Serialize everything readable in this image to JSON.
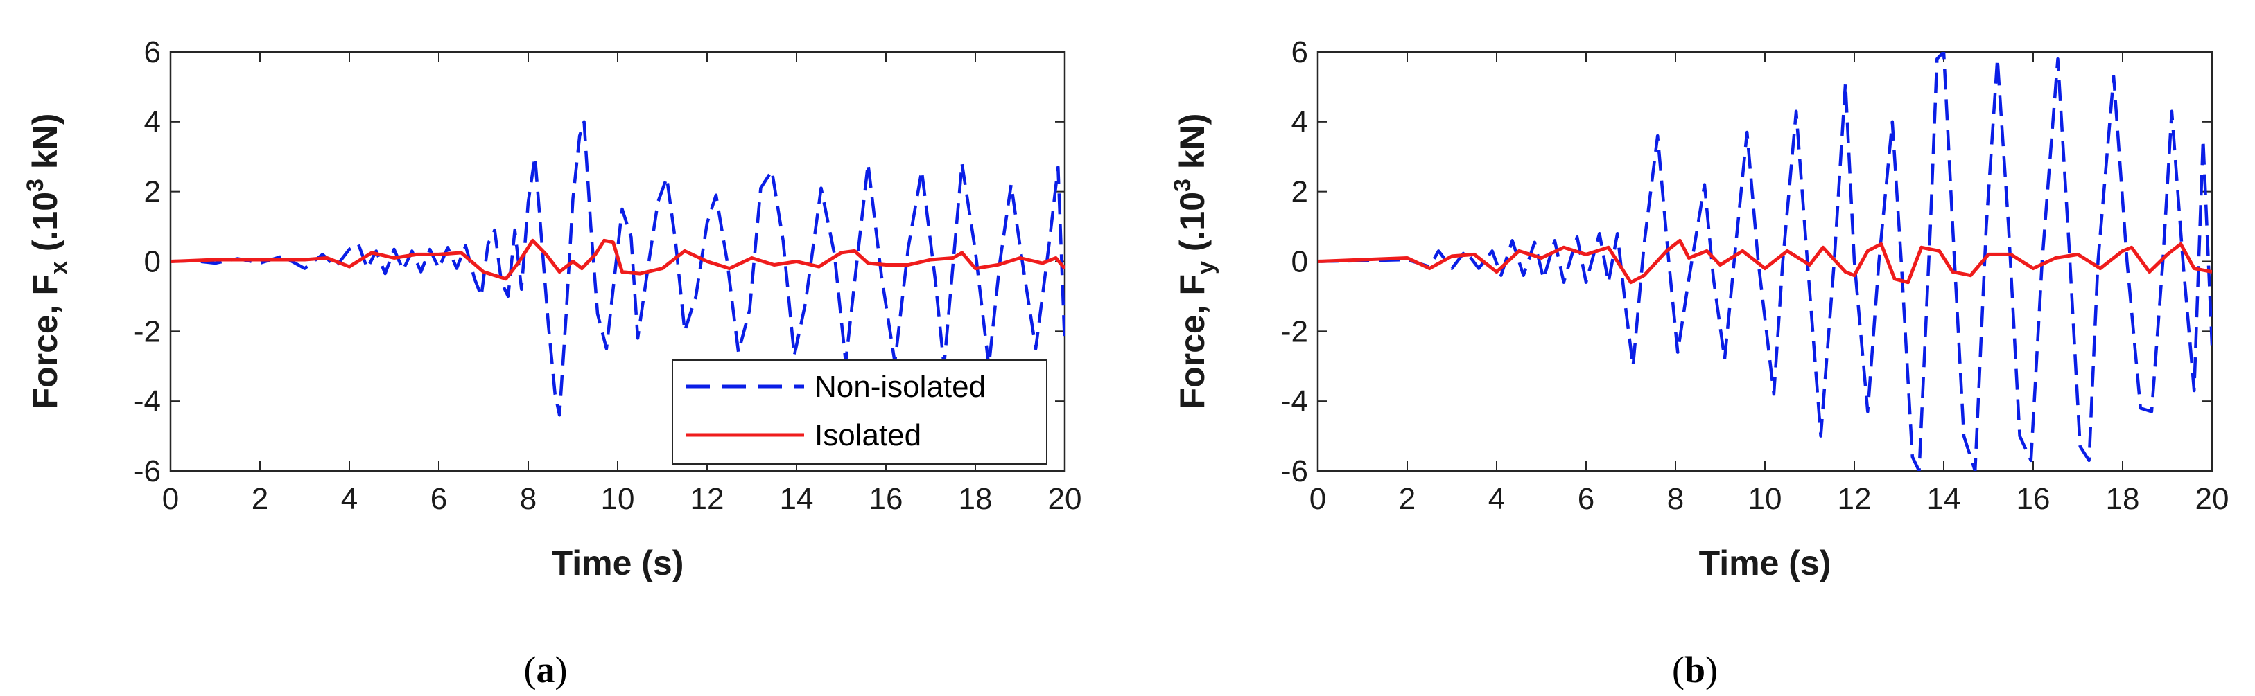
{
  "figure": {
    "colors": {
      "non_isolated": "#0a1ee6",
      "isolated": "#ef1c1c",
      "axis": "#262626",
      "background": "#ffffff"
    }
  },
  "chart_data": [
    {
      "panel": "a",
      "caption_open": "(",
      "caption_letter": "a",
      "caption_close": ")",
      "type": "line",
      "title": "",
      "xlabel": "Time (s)",
      "ylabel_prefix": "Force, F",
      "ylabel_sub": "x",
      "ylabel_unit_open": " (.10",
      "ylabel_sup": "3",
      "ylabel_unit_close": " kN)",
      "xlim": [
        0,
        20
      ],
      "ylim": [
        -6,
        6
      ],
      "x_ticks": [
        0,
        2,
        4,
        6,
        8,
        10,
        12,
        14,
        16,
        18,
        20
      ],
      "y_ticks": [
        -6,
        -4,
        -2,
        0,
        2,
        4,
        6
      ],
      "grid": false,
      "legend": {
        "position": "bottom-right",
        "entries": [
          "Non-isolated",
          "Isolated"
        ]
      },
      "series": [
        {
          "name": "Non-isolated",
          "style": "dashed",
          "color": "#0a1ee6",
          "points": [
            [
              0,
              0
            ],
            [
              0.5,
              0.02
            ],
            [
              1,
              -0.05
            ],
            [
              1.5,
              0.08
            ],
            [
              2,
              -0.05
            ],
            [
              2.5,
              0.15
            ],
            [
              3,
              -0.2
            ],
            [
              3.4,
              0.2
            ],
            [
              3.7,
              -0.15
            ],
            [
              4,
              0.35
            ],
            [
              4.2,
              0.5
            ],
            [
              4.4,
              -0.2
            ],
            [
              4.6,
              0.3
            ],
            [
              4.8,
              -0.35
            ],
            [
              5,
              0.35
            ],
            [
              5.2,
              -0.25
            ],
            [
              5.4,
              0.3
            ],
            [
              5.6,
              -0.3
            ],
            [
              5.8,
              0.35
            ],
            [
              6,
              -0.2
            ],
            [
              6.2,
              0.4
            ],
            [
              6.4,
              -0.2
            ],
            [
              6.6,
              0.45
            ],
            [
              6.8,
              -0.5
            ],
            [
              6.95,
              -1.0
            ],
            [
              7.1,
              0.5
            ],
            [
              7.25,
              0.9
            ],
            [
              7.4,
              -0.6
            ],
            [
              7.55,
              -1.0
            ],
            [
              7.7,
              0.9
            ],
            [
              7.85,
              -0.8
            ],
            [
              8,
              1.7
            ],
            [
              8.15,
              3.0
            ],
            [
              8.3,
              0.6
            ],
            [
              8.45,
              -1.8
            ],
            [
              8.6,
              -3.8
            ],
            [
              8.7,
              -4.4
            ],
            [
              8.85,
              -1.5
            ],
            [
              9.0,
              1.8
            ],
            [
              9.15,
              3.6
            ],
            [
              9.25,
              4.0
            ],
            [
              9.4,
              1.0
            ],
            [
              9.55,
              -1.5
            ],
            [
              9.75,
              -2.5
            ],
            [
              9.95,
              -0.2
            ],
            [
              10.1,
              1.5
            ],
            [
              10.3,
              0.7
            ],
            [
              10.45,
              -2.2
            ],
            [
              10.7,
              0.0
            ],
            [
              10.9,
              1.7
            ],
            [
              11.1,
              2.4
            ],
            [
              11.3,
              0.5
            ],
            [
              11.5,
              -2.0
            ],
            [
              11.75,
              -1.0
            ],
            [
              12.0,
              1.1
            ],
            [
              12.2,
              1.9
            ],
            [
              12.45,
              0.0
            ],
            [
              12.7,
              -2.6
            ],
            [
              12.95,
              -1.4
            ],
            [
              13.2,
              2.1
            ],
            [
              13.45,
              2.6
            ],
            [
              13.7,
              0.6
            ],
            [
              13.95,
              -2.7
            ],
            [
              14.2,
              -1.2
            ],
            [
              14.55,
              2.1
            ],
            [
              14.85,
              0.2
            ],
            [
              15.1,
              -2.9
            ],
            [
              15.3,
              -0.6
            ],
            [
              15.6,
              2.8
            ],
            [
              15.9,
              -0.4
            ],
            [
              16.2,
              -2.9
            ],
            [
              16.5,
              0.4
            ],
            [
              16.8,
              2.6
            ],
            [
              17.1,
              -0.5
            ],
            [
              17.3,
              -3.0
            ],
            [
              17.7,
              2.8
            ],
            [
              18.0,
              0.3
            ],
            [
              18.3,
              -3.0
            ],
            [
              18.55,
              0.0
            ],
            [
              18.8,
              2.2
            ],
            [
              19.05,
              0.0
            ],
            [
              19.35,
              -2.5
            ],
            [
              19.65,
              0.5
            ],
            [
              19.85,
              2.7
            ],
            [
              20,
              -2.4
            ]
          ]
        },
        {
          "name": "Isolated",
          "style": "solid",
          "color": "#ef1c1c",
          "points": [
            [
              0,
              0
            ],
            [
              1,
              0.05
            ],
            [
              2,
              0.05
            ],
            [
              3,
              0.05
            ],
            [
              3.5,
              0.1
            ],
            [
              4,
              -0.15
            ],
            [
              4.5,
              0.25
            ],
            [
              5,
              0.1
            ],
            [
              5.5,
              0.2
            ],
            [
              6,
              0.2
            ],
            [
              6.5,
              0.25
            ],
            [
              7,
              -0.3
            ],
            [
              7.5,
              -0.5
            ],
            [
              7.8,
              0.0
            ],
            [
              8.1,
              0.6
            ],
            [
              8.4,
              0.2
            ],
            [
              8.7,
              -0.3
            ],
            [
              9.0,
              0.0
            ],
            [
              9.2,
              -0.2
            ],
            [
              9.5,
              0.2
            ],
            [
              9.7,
              0.6
            ],
            [
              9.9,
              0.55
            ],
            [
              10.1,
              -0.3
            ],
            [
              10.5,
              -0.35
            ],
            [
              11.0,
              -0.2
            ],
            [
              11.5,
              0.3
            ],
            [
              12.0,
              0.0
            ],
            [
              12.5,
              -0.2
            ],
            [
              13.0,
              0.1
            ],
            [
              13.5,
              -0.1
            ],
            [
              14.0,
              0.0
            ],
            [
              14.5,
              -0.15
            ],
            [
              15.0,
              0.25
            ],
            [
              15.3,
              0.3
            ],
            [
              15.6,
              -0.05
            ],
            [
              16.0,
              -0.1
            ],
            [
              16.5,
              -0.1
            ],
            [
              17.0,
              0.05
            ],
            [
              17.5,
              0.1
            ],
            [
              17.7,
              0.25
            ],
            [
              18.0,
              -0.2
            ],
            [
              18.5,
              -0.1
            ],
            [
              19.0,
              0.1
            ],
            [
              19.5,
              -0.05
            ],
            [
              19.8,
              0.1
            ],
            [
              20,
              -0.2
            ]
          ]
        }
      ]
    },
    {
      "panel": "b",
      "caption_open": "(",
      "caption_letter": "b",
      "caption_close": ")",
      "type": "line",
      "title": "",
      "xlabel": "Time (s)",
      "ylabel_prefix": "Force, F",
      "ylabel_sub": "y",
      "ylabel_unit_open": " (.10",
      "ylabel_sup": "3",
      "ylabel_unit_close": " kN)",
      "xlim": [
        0,
        20
      ],
      "ylim": [
        -6,
        6
      ],
      "x_ticks": [
        0,
        2,
        4,
        6,
        8,
        10,
        12,
        14,
        16,
        18,
        20
      ],
      "y_ticks": [
        -6,
        -4,
        -2,
        0,
        2,
        4,
        6
      ],
      "grid": false,
      "legend": null,
      "series": [
        {
          "name": "Non-isolated",
          "style": "dashed",
          "color": "#0a1ee6",
          "points": [
            [
              0,
              0
            ],
            [
              1,
              0.02
            ],
            [
              2,
              0.05
            ],
            [
              2.5,
              -0.15
            ],
            [
              2.7,
              0.3
            ],
            [
              3.0,
              -0.2
            ],
            [
              3.3,
              0.3
            ],
            [
              3.6,
              -0.2
            ],
            [
              3.9,
              0.3
            ],
            [
              4.1,
              -0.4
            ],
            [
              4.35,
              0.6
            ],
            [
              4.6,
              -0.4
            ],
            [
              4.85,
              0.55
            ],
            [
              5.05,
              -0.5
            ],
            [
              5.3,
              0.6
            ],
            [
              5.5,
              -0.6
            ],
            [
              5.8,
              0.7
            ],
            [
              6.0,
              -0.6
            ],
            [
              6.3,
              0.8
            ],
            [
              6.5,
              -0.6
            ],
            [
              6.7,
              0.8
            ],
            [
              6.9,
              -1.5
            ],
            [
              7.05,
              -3.0
            ],
            [
              7.3,
              0.5
            ],
            [
              7.6,
              3.6
            ],
            [
              7.85,
              0.0
            ],
            [
              8.05,
              -2.6
            ],
            [
              8.3,
              -0.5
            ],
            [
              8.65,
              2.2
            ],
            [
              8.85,
              -0.5
            ],
            [
              9.1,
              -2.8
            ],
            [
              9.35,
              0.5
            ],
            [
              9.6,
              3.7
            ],
            [
              9.85,
              0.0
            ],
            [
              10.2,
              -3.8
            ],
            [
              10.4,
              0.0
            ],
            [
              10.7,
              4.3
            ],
            [
              10.95,
              0.0
            ],
            [
              11.25,
              -5.0
            ],
            [
              11.55,
              0.0
            ],
            [
              11.8,
              5.1
            ],
            [
              12.0,
              0.0
            ],
            [
              12.3,
              -4.3
            ],
            [
              12.55,
              0.0
            ],
            [
              12.85,
              4.0
            ],
            [
              13.05,
              0.0
            ],
            [
              13.3,
              -5.6
            ],
            [
              13.45,
              -6.0
            ],
            [
              13.7,
              1.0
            ],
            [
              13.85,
              5.8
            ],
            [
              14.0,
              6.0
            ],
            [
              14.2,
              1.0
            ],
            [
              14.45,
              -5.0
            ],
            [
              14.7,
              -6.0
            ],
            [
              14.95,
              1.0
            ],
            [
              15.2,
              5.8
            ],
            [
              15.45,
              1.0
            ],
            [
              15.7,
              -5.0
            ],
            [
              15.95,
              -5.7
            ],
            [
              16.2,
              0.0
            ],
            [
              16.55,
              5.8
            ],
            [
              16.8,
              0.5
            ],
            [
              17.05,
              -5.3
            ],
            [
              17.25,
              -5.7
            ],
            [
              17.45,
              0.0
            ],
            [
              17.8,
              5.3
            ],
            [
              18.1,
              0.0
            ],
            [
              18.4,
              -4.2
            ],
            [
              18.65,
              -4.3
            ],
            [
              18.9,
              0.0
            ],
            [
              19.1,
              4.3
            ],
            [
              19.35,
              0.0
            ],
            [
              19.6,
              -3.7
            ],
            [
              19.8,
              3.5
            ],
            [
              20,
              -2.4
            ]
          ]
        },
        {
          "name": "Isolated",
          "style": "solid",
          "color": "#ef1c1c",
          "points": [
            [
              0,
              0
            ],
            [
              1,
              0.05
            ],
            [
              2,
              0.1
            ],
            [
              2.5,
              -0.2
            ],
            [
              3,
              0.15
            ],
            [
              3.5,
              0.2
            ],
            [
              4,
              -0.3
            ],
            [
              4.5,
              0.3
            ],
            [
              5,
              0.1
            ],
            [
              5.5,
              0.4
            ],
            [
              6,
              0.2
            ],
            [
              6.5,
              0.4
            ],
            [
              7.0,
              -0.6
            ],
            [
              7.3,
              -0.4
            ],
            [
              7.8,
              0.3
            ],
            [
              8.1,
              0.6
            ],
            [
              8.3,
              0.1
            ],
            [
              8.7,
              0.3
            ],
            [
              9.0,
              -0.1
            ],
            [
              9.5,
              0.3
            ],
            [
              10.0,
              -0.2
            ],
            [
              10.5,
              0.3
            ],
            [
              11.0,
              -0.1
            ],
            [
              11.3,
              0.4
            ],
            [
              11.8,
              -0.3
            ],
            [
              12.0,
              -0.4
            ],
            [
              12.3,
              0.3
            ],
            [
              12.6,
              0.5
            ],
            [
              12.9,
              -0.5
            ],
            [
              13.2,
              -0.6
            ],
            [
              13.5,
              0.4
            ],
            [
              13.9,
              0.3
            ],
            [
              14.2,
              -0.3
            ],
            [
              14.6,
              -0.4
            ],
            [
              15.0,
              0.2
            ],
            [
              15.5,
              0.2
            ],
            [
              16.0,
              -0.2
            ],
            [
              16.5,
              0.1
            ],
            [
              17.0,
              0.2
            ],
            [
              17.5,
              -0.2
            ],
            [
              18.0,
              0.3
            ],
            [
              18.2,
              0.4
            ],
            [
              18.6,
              -0.3
            ],
            [
              19.0,
              0.2
            ],
            [
              19.3,
              0.5
            ],
            [
              19.6,
              -0.2
            ],
            [
              20,
              -0.3
            ]
          ]
        }
      ]
    }
  ]
}
